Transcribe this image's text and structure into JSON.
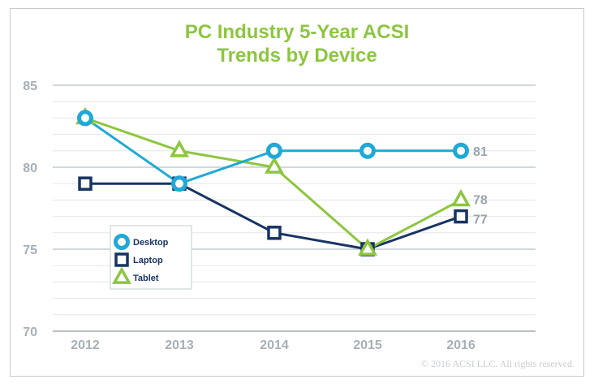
{
  "chart_data": {
    "type": "line",
    "title": [
      "PC Industry 5-Year ACSI",
      "Trends by Device"
    ],
    "categories": [
      "2012",
      "2013",
      "2014",
      "2015",
      "2016"
    ],
    "y_ticks": [
      "85",
      "80",
      "75",
      "70"
    ],
    "ylim": [
      70,
      85
    ],
    "grid": true,
    "legend_position": "middle-left",
    "series": [
      {
        "name": "Desktop",
        "values": [
          83,
          79,
          81,
          81,
          81
        ],
        "color": "#1fa9d6",
        "marker": "circle",
        "end_label": "81"
      },
      {
        "name": "Laptop",
        "values": [
          79,
          79,
          76,
          75,
          77
        ],
        "color": "#173463",
        "marker": "square",
        "end_label": "77"
      },
      {
        "name": "Tablet",
        "values": [
          83,
          81,
          80,
          75,
          78
        ],
        "color": "#8dc63f",
        "marker": "triangle",
        "end_label": "78"
      }
    ],
    "copyright": "© 2016 ACSI LLC. All rights reserved."
  }
}
